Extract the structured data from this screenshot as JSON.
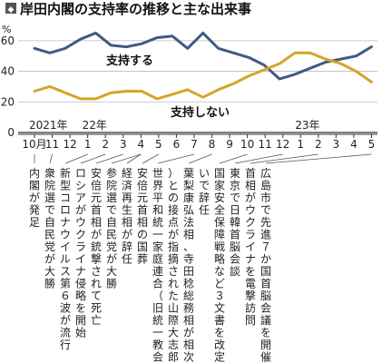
{
  "chart_data": {
    "type": "line",
    "title": "岸田内閣の支持率の推移と主な出来事",
    "title_marker": "◆",
    "ylabel": "%",
    "ylim": [
      0,
      70
    ],
    "y_ticks": [
      0,
      20,
      40,
      60
    ],
    "grid": true,
    "x_ticks": [
      "10月",
      "11",
      "12",
      "1",
      "2",
      "3",
      "4",
      "5",
      "6",
      "7",
      "8",
      "9",
      "10",
      "11",
      "12",
      "1",
      "2",
      "3",
      "4",
      "5"
    ],
    "year_labels": [
      {
        "label": "2021年",
        "index": 0
      },
      {
        "label": "22年",
        "index": 3
      },
      {
        "label": "23年",
        "index": 15
      }
    ],
    "series": [
      {
        "name": "支持する",
        "color": "#3f5b82",
        "values": [
          55,
          52,
          55,
          61,
          65,
          57,
          56,
          58,
          62,
          63,
          55,
          65,
          55,
          52,
          49,
          44,
          35,
          38,
          42,
          46,
          48,
          50,
          56
        ]
      },
      {
        "name": "支持しない",
        "color": "#d4a52a",
        "values": [
          27,
          30,
          26,
          22,
          22,
          26,
          27,
          27,
          22,
          25,
          28,
          23,
          28,
          32,
          37,
          41,
          45,
          52,
          52,
          48,
          45,
          40,
          33
        ]
      }
    ],
    "events": [
      {
        "index": 0,
        "text": "内閣が発足"
      },
      {
        "index": 1,
        "text": "衆院選で自民党が大勝"
      },
      {
        "index": 3,
        "text": "新型コロナウイルス第６波が流行"
      },
      {
        "index": 4,
        "text": "ロシアがウクライナ侵略を開始"
      },
      {
        "index": 5,
        "text": "安倍元首相が銃撃されて死亡"
      },
      {
        "index": 6,
        "text": "参院選で自民党が大勝"
      },
      {
        "index": 6,
        "text": "経済再生相が辞任"
      },
      {
        "index": 7,
        "text": "安倍元首相の国葬"
      },
      {
        "index": 9,
        "text": "世界平和統一家庭連合（旧統一教会）との接点が指摘された山際大志郎"
      },
      {
        "index": 10,
        "text": "葉梨康弘法相、寺田稔総務相が相次いで辞任"
      },
      {
        "index": 12,
        "text": "国家安全保障戦略など３文書を改定"
      },
      {
        "index": 14,
        "text": "東京で日韓首脳会談"
      },
      {
        "index": 16,
        "text": "首相がウクライナを電撃訪問"
      },
      {
        "index": 19,
        "text": "広島市で先進７か国首脳会議を開催"
      }
    ]
  }
}
